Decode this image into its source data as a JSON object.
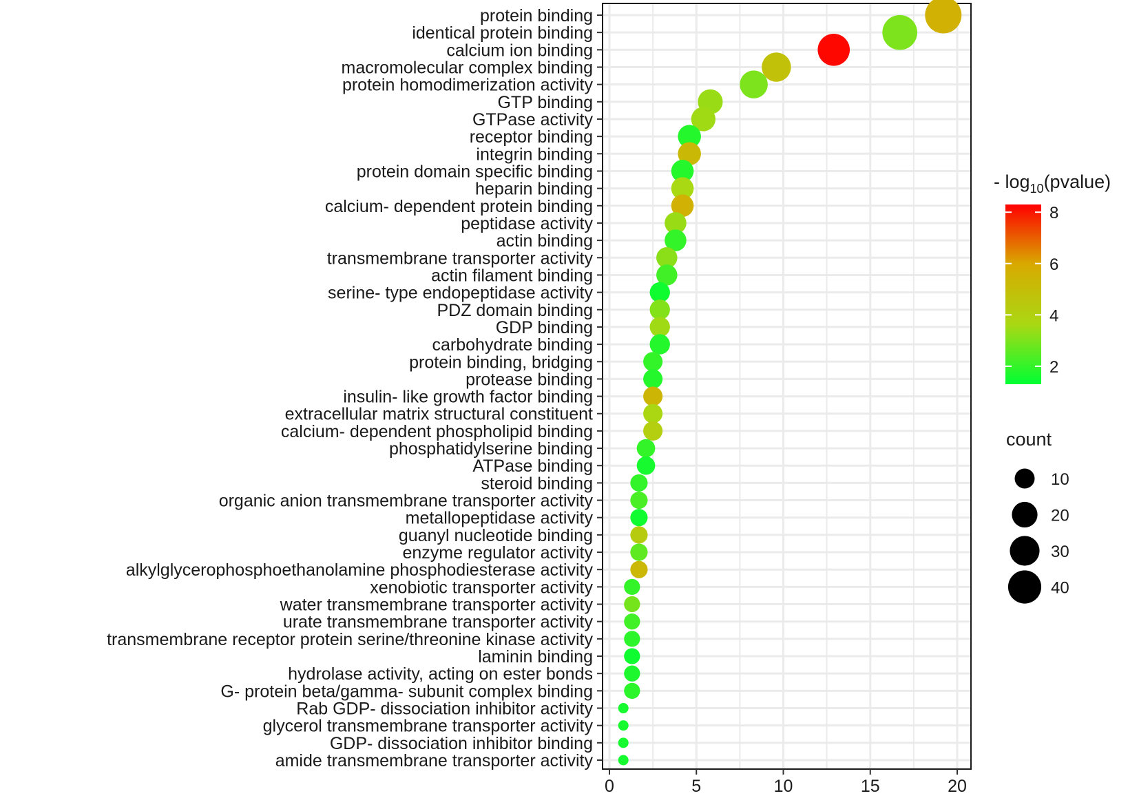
{
  "chart_data": {
    "type": "scatter",
    "x_range": [
      0,
      20
    ],
    "x_ticks": [
      0,
      5,
      10,
      15,
      20
    ],
    "grid": true,
    "legend_position": "right",
    "color_legend": {
      "title_prefix": "- log",
      "title_sub": "10",
      "title_suffix": "(pvalue)",
      "range": [
        1.3,
        8.3
      ],
      "ticks": [
        2,
        4,
        6,
        8
      ],
      "colors": [
        "#00ff33",
        "#aad813",
        "#d8aa00",
        "#ff0000"
      ]
    },
    "size_legend": {
      "title": "count",
      "ticks": [
        10,
        20,
        30,
        40
      ]
    },
    "points": [
      {
        "label": "protein binding",
        "x": 19.2,
        "logp": 5.6,
        "count": 45
      },
      {
        "label": "identical protein binding",
        "x": 16.7,
        "logp": 3.0,
        "count": 40
      },
      {
        "label": "calcium ion binding",
        "x": 12.9,
        "logp": 8.2,
        "count": 32
      },
      {
        "label": "macromolecular complex binding",
        "x": 9.6,
        "logp": 4.8,
        "count": 25
      },
      {
        "label": "protein homodimerization activity",
        "x": 8.3,
        "logp": 3.0,
        "count": 22
      },
      {
        "label": "GTP binding",
        "x": 5.8,
        "logp": 3.4,
        "count": 16
      },
      {
        "label": "GTPase activity",
        "x": 5.4,
        "logp": 3.5,
        "count": 15
      },
      {
        "label": "receptor binding",
        "x": 4.6,
        "logp": 1.8,
        "count": 13
      },
      {
        "label": "integrin binding",
        "x": 4.6,
        "logp": 5.2,
        "count": 13
      },
      {
        "label": "protein domain specific binding",
        "x": 4.2,
        "logp": 1.8,
        "count": 12
      },
      {
        "label": "heparin binding",
        "x": 4.2,
        "logp": 3.6,
        "count": 12
      },
      {
        "label": "calcium- dependent protein binding",
        "x": 4.2,
        "logp": 5.6,
        "count": 12
      },
      {
        "label": "peptidase activity",
        "x": 3.8,
        "logp": 3.4,
        "count": 11
      },
      {
        "label": "actin binding",
        "x": 3.8,
        "logp": 2.0,
        "count": 11
      },
      {
        "label": "transmembrane transporter activity",
        "x": 3.3,
        "logp": 3.2,
        "count": 10
      },
      {
        "label": "actin filament binding",
        "x": 3.3,
        "logp": 2.2,
        "count": 10
      },
      {
        "label": "serine- type endopeptidase activity",
        "x": 2.9,
        "logp": 1.5,
        "count": 9
      },
      {
        "label": "PDZ domain binding",
        "x": 2.9,
        "logp": 3.1,
        "count": 9
      },
      {
        "label": "GDP binding",
        "x": 2.9,
        "logp": 3.5,
        "count": 9
      },
      {
        "label": "carbohydrate binding",
        "x": 2.9,
        "logp": 1.8,
        "count": 9
      },
      {
        "label": "protein binding, bridging",
        "x": 2.5,
        "logp": 2.0,
        "count": 8
      },
      {
        "label": "protease binding",
        "x": 2.5,
        "logp": 1.8,
        "count": 8
      },
      {
        "label": "insulin- like growth factor binding",
        "x": 2.5,
        "logp": 5.4,
        "count": 8
      },
      {
        "label": "extracellular matrix structural constituent",
        "x": 2.5,
        "logp": 3.7,
        "count": 8
      },
      {
        "label": "calcium- dependent phospholipid binding",
        "x": 2.5,
        "logp": 4.1,
        "count": 8
      },
      {
        "label": "phosphatidylserine binding",
        "x": 2.1,
        "logp": 2.0,
        "count": 7
      },
      {
        "label": "ATPase binding",
        "x": 2.1,
        "logp": 1.6,
        "count": 7
      },
      {
        "label": "steroid binding",
        "x": 1.7,
        "logp": 2.0,
        "count": 6
      },
      {
        "label": "organic anion transmembrane transporter activity",
        "x": 1.7,
        "logp": 2.3,
        "count": 6
      },
      {
        "label": "metallopeptidase activity",
        "x": 1.7,
        "logp": 1.5,
        "count": 6
      },
      {
        "label": "guanyl nucleotide binding",
        "x": 1.7,
        "logp": 4.3,
        "count": 6
      },
      {
        "label": "enzyme regulator activity",
        "x": 1.7,
        "logp": 2.6,
        "count": 6
      },
      {
        "label": "alkylglycerophosphoethanolamine phosphodiesterase activity",
        "x": 1.7,
        "logp": 5.3,
        "count": 6
      },
      {
        "label": "xenobiotic transporter activity",
        "x": 1.3,
        "logp": 2.0,
        "count": 5
      },
      {
        "label": "water transmembrane transporter activity",
        "x": 1.3,
        "logp": 2.9,
        "count": 5
      },
      {
        "label": "urate transmembrane transporter activity",
        "x": 1.3,
        "logp": 2.2,
        "count": 5
      },
      {
        "label": "transmembrane receptor protein serine/threonine kinase activity",
        "x": 1.3,
        "logp": 1.9,
        "count": 5
      },
      {
        "label": "laminin binding",
        "x": 1.3,
        "logp": 1.5,
        "count": 5
      },
      {
        "label": "hydrolase activity, acting on ester bonds",
        "x": 1.3,
        "logp": 1.7,
        "count": 5
      },
      {
        "label": "G- protein beta/gamma- subunit complex binding",
        "x": 1.3,
        "logp": 1.9,
        "count": 5
      },
      {
        "label": "Rab GDP- dissociation inhibitor activity",
        "x": 0.8,
        "logp": 1.6,
        "count": 3
      },
      {
        "label": "glycerol transmembrane transporter activity",
        "x": 0.8,
        "logp": 1.6,
        "count": 3
      },
      {
        "label": "GDP- dissociation inhibitor binding",
        "x": 0.8,
        "logp": 1.6,
        "count": 3
      },
      {
        "label": "amide transmembrane transporter activity",
        "x": 0.8,
        "logp": 1.6,
        "count": 3
      }
    ]
  }
}
